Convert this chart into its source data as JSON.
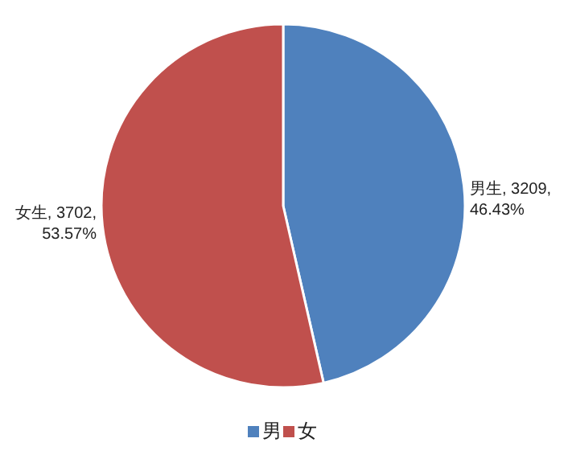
{
  "chart_data": {
    "type": "pie",
    "categories": [
      "男",
      "女"
    ],
    "values": [
      3209,
      3702
    ],
    "colors": [
      "#4f81bd",
      "#c0504d"
    ],
    "value_labels": [
      "男生, 3209, 46.43%",
      "女生, 3702, 53.57%"
    ],
    "legend": "bottom"
  }
}
